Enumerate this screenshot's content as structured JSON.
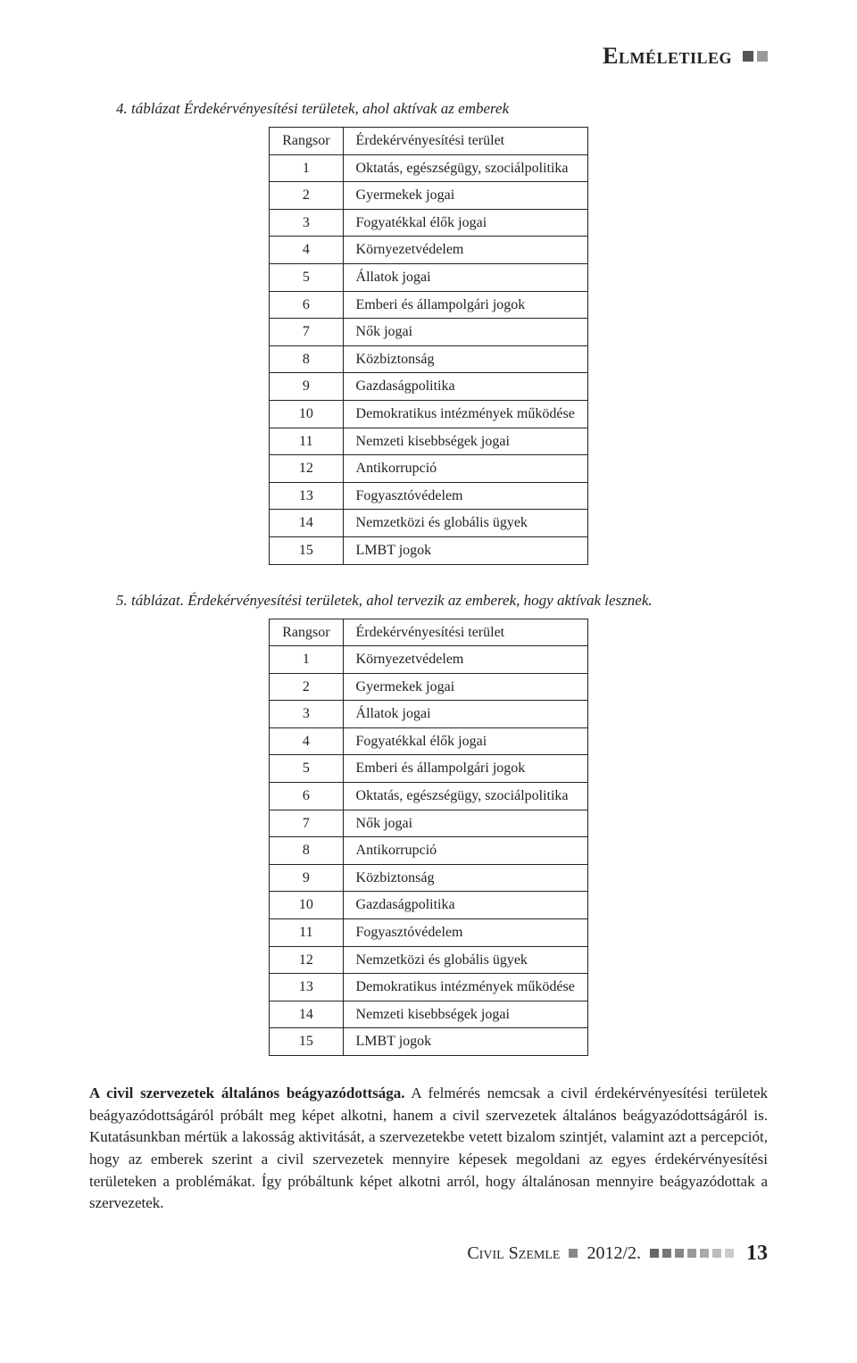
{
  "header": {
    "title": "Elméletileg",
    "square_colors": [
      "#555555",
      "#999999"
    ]
  },
  "table4": {
    "caption": "4. táblázat Érdekérvényesítési területek, ahol aktívak az emberek",
    "columns": [
      "Rangsor",
      "Érdekérvényesítési terület"
    ],
    "rows": [
      [
        "1",
        "Oktatás, egészségügy, szociálpolitika"
      ],
      [
        "2",
        "Gyermekek jogai"
      ],
      [
        "3",
        "Fogyatékkal élők jogai"
      ],
      [
        "4",
        "Környezetvédelem"
      ],
      [
        "5",
        "Állatok jogai"
      ],
      [
        "6",
        "Emberi és állampolgári jogok"
      ],
      [
        "7",
        "Nők jogai"
      ],
      [
        "8",
        "Közbiztonság"
      ],
      [
        "9",
        "Gazdaságpolitika"
      ],
      [
        "10",
        "Demokratikus intézmények működése"
      ],
      [
        "11",
        "Nemzeti kisebbségek jogai"
      ],
      [
        "12",
        "Antikorrupció"
      ],
      [
        "13",
        "Fogyasztóvédelem"
      ],
      [
        "14",
        "Nemzetközi és globális ügyek"
      ],
      [
        "15",
        "LMBT jogok"
      ]
    ]
  },
  "table5": {
    "caption": "5. táblázat. Érdekérvényesítési területek, ahol tervezik az emberek, hogy aktívak lesznek.",
    "columns": [
      "Rangsor",
      "Érdekérvényesítési terület"
    ],
    "rows": [
      [
        "1",
        "Környezetvédelem"
      ],
      [
        "2",
        "Gyermekek jogai"
      ],
      [
        "3",
        "Állatok jogai"
      ],
      [
        "4",
        "Fogyatékkal élők jogai"
      ],
      [
        "5",
        "Emberi és állampolgári jogok"
      ],
      [
        "6",
        "Oktatás, egészségügy, szociálpolitika"
      ],
      [
        "7",
        "Nők jogai"
      ],
      [
        "8",
        "Antikorrupció"
      ],
      [
        "9",
        "Közbiztonság"
      ],
      [
        "10",
        "Gazdaságpolitika"
      ],
      [
        "11",
        "Fogyasztóvédelem"
      ],
      [
        "12",
        "Nemzetközi és globális ügyek"
      ],
      [
        "13",
        "Demokratikus intézmények működése"
      ],
      [
        "14",
        "Nemzeti kisebbségek jogai"
      ],
      [
        "15",
        "LMBT jogok"
      ]
    ]
  },
  "paragraph": {
    "lead": "A civil szervezetek általános beágyazódottsága.",
    "text": " A felmérés nemcsak a civil érdekérvényesítési területek beágyazódottságáról próbált meg képet alkotni, hanem a civil szervezetek általános beágyazódottságáról is. Kutatásunkban mértük a lakosság aktivitását, a szervezetekbe vetett bizalom szintjét, valamint azt a percepciót, hogy az emberek szerint a civil szervezetek mennyire képesek megoldani az egyes érdekérvényesítési területeken a problémákat. Így próbáltunk képet alkotni arról, hogy általánosan mennyire beágyazódottak a szervezetek."
  },
  "footer": {
    "journal": "Civil Szemle",
    "issue": "2012/2.",
    "page": "13",
    "square_colors": [
      "#666666",
      "#777777",
      "#888888",
      "#999999",
      "#aaaaaa",
      "#bbbbbb",
      "#cccccc"
    ]
  }
}
